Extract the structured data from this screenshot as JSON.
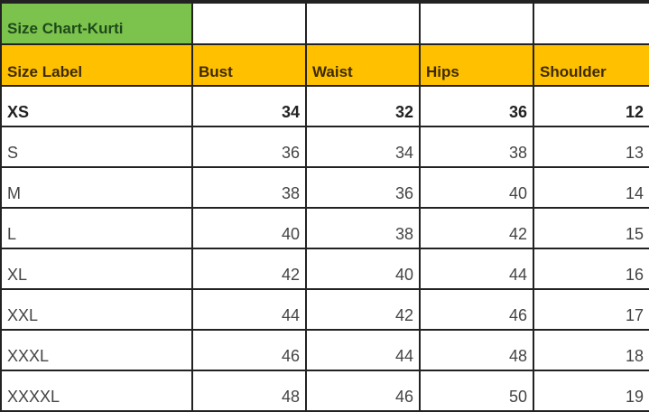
{
  "title": "Size Chart-Kurti",
  "headers": [
    "Size Label",
    "Bust",
    "Waist",
    "Hips",
    "Shoulder"
  ],
  "rows": [
    [
      "XS",
      "34",
      "32",
      "36",
      "12"
    ],
    [
      "S",
      "36",
      "34",
      "38",
      "13"
    ],
    [
      "M",
      "38",
      "36",
      "40",
      "14"
    ],
    [
      "L",
      "40",
      "38",
      "42",
      "15"
    ],
    [
      "XL",
      "42",
      "40",
      "44",
      "16"
    ],
    [
      "XXL",
      "44",
      "42",
      "46",
      "17"
    ],
    [
      "XXXL",
      "46",
      "44",
      "48",
      "18"
    ],
    [
      "XXXXL",
      "48",
      "46",
      "50",
      "19"
    ]
  ],
  "colors": {
    "title_bg": "#7cc34e",
    "header_bg": "#ffc000"
  }
}
